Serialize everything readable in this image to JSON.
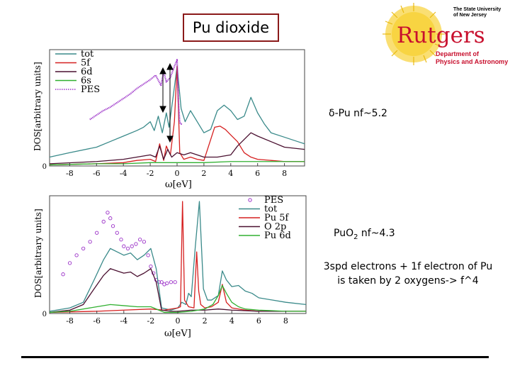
{
  "slide": {
    "title": "Pu dioxide",
    "note_delta": "δ-Pu nf~5.2",
    "note_puo2_prefix": "PuO",
    "note_puo2_sub": "2",
    "note_puo2_suffix": " nf~4.3",
    "note_electrons_line1": "3spd electrons + 1f electron of Pu",
    "note_electrons_line2": "is taken by 2 oxygens-> f^4"
  },
  "logo": {
    "university_line1": "The State University",
    "university_line2": "of New Jersey",
    "name": "Rutgers",
    "department_line1": "Department of",
    "department_line2": "Physics and Astronomy",
    "colors": {
      "red": "#c8102e",
      "sun": "#f5c400"
    }
  },
  "chart_data": [
    {
      "type": "line",
      "xlabel": "ω[eV]",
      "ylabel": "DOS[arbitrary units]",
      "xlim": [
        -9.5,
        9.5
      ],
      "ylim": [
        0,
        1.0
      ],
      "xticks": [
        -8,
        -6,
        -4,
        -2,
        0,
        2,
        4,
        6,
        8
      ],
      "yticks": [
        0
      ],
      "legend_position": "top-left",
      "series": [
        {
          "name": "tot",
          "color": "#3a8a8a",
          "marker": "none",
          "x": [
            -9.5,
            -8,
            -6,
            -5,
            -4,
            -3,
            -2.5,
            -2,
            -1.7,
            -1.4,
            -1.1,
            -0.8,
            -0.6,
            -0.3,
            0,
            0.3,
            0.6,
            1.0,
            1.5,
            2.0,
            2.5,
            3.0,
            3.5,
            4.0,
            4.5,
            5.0,
            5.5,
            6.0,
            6.5,
            7.0,
            8.0,
            9.0,
            9.5
          ],
          "y": [
            0.08,
            0.12,
            0.17,
            0.22,
            0.27,
            0.32,
            0.35,
            0.4,
            0.32,
            0.45,
            0.3,
            0.48,
            0.35,
            0.62,
            0.9,
            0.52,
            0.4,
            0.5,
            0.4,
            0.3,
            0.33,
            0.5,
            0.55,
            0.5,
            0.42,
            0.45,
            0.62,
            0.48,
            0.38,
            0.3,
            0.26,
            0.22,
            0.2
          ]
        },
        {
          "name": "5f",
          "color": "#d62020",
          "marker": "none",
          "x": [
            -9.5,
            -6,
            -4,
            -3,
            -2,
            -1.6,
            -1.3,
            -1.0,
            -0.8,
            -0.5,
            -0.2,
            0,
            0.2,
            0.5,
            1.0,
            1.5,
            2.0,
            2.4,
            2.8,
            3.2,
            3.6,
            4.0,
            4.5,
            5.0,
            5.5,
            6.0,
            7.0,
            8.0,
            9.5
          ],
          "y": [
            0.01,
            0.02,
            0.03,
            0.05,
            0.06,
            0.04,
            0.2,
            0.05,
            0.18,
            0.1,
            0.4,
            0.9,
            0.12,
            0.06,
            0.08,
            0.06,
            0.05,
            0.2,
            0.35,
            0.36,
            0.33,
            0.28,
            0.22,
            0.12,
            0.08,
            0.06,
            0.05,
            0.04,
            0.04
          ]
        },
        {
          "name": "6d",
          "color": "#4a1030",
          "marker": "none",
          "x": [
            -9.5,
            -6,
            -4,
            -3,
            -2,
            -1.6,
            -1.3,
            -1.0,
            -0.7,
            -0.4,
            0,
            0.5,
            1.0,
            1.5,
            2.0,
            3.0,
            4.0,
            4.5,
            5.0,
            5.5,
            6.0,
            7.0,
            8.0,
            9.5
          ],
          "y": [
            0.02,
            0.04,
            0.06,
            0.08,
            0.1,
            0.08,
            0.18,
            0.06,
            0.15,
            0.08,
            0.12,
            0.1,
            0.12,
            0.1,
            0.08,
            0.08,
            0.1,
            0.18,
            0.24,
            0.3,
            0.27,
            0.22,
            0.17,
            0.15
          ]
        },
        {
          "name": "6s",
          "color": "#30b030",
          "marker": "none",
          "x": [
            -9.5,
            -6,
            -4,
            -2,
            0,
            2,
            4,
            6,
            8,
            9.5
          ],
          "y": [
            0.01,
            0.02,
            0.02,
            0.03,
            0.03,
            0.03,
            0.04,
            0.04,
            0.04,
            0.04
          ]
        },
        {
          "name": "PES",
          "color": "#9b30c8",
          "marker": "dotted",
          "x": [
            -6.5,
            -6,
            -5.5,
            -5,
            -4.5,
            -4,
            -3.5,
            -3,
            -2.5,
            -2,
            -1.6,
            -1.2,
            -1.0,
            -0.8,
            -0.5,
            -0.2,
            0,
            0.1,
            0.2,
            0.3,
            0.4
          ],
          "y": [
            0.42,
            0.46,
            0.5,
            0.53,
            0.57,
            0.61,
            0.65,
            0.7,
            0.74,
            0.78,
            0.82,
            0.73,
            0.85,
            0.76,
            0.8,
            0.9,
            0.96,
            0.58,
            0.39,
            0.38,
            0.38
          ]
        }
      ]
    },
    {
      "type": "line",
      "xlabel": "ω[eV]",
      "ylabel": "DOS[arbitrary units]",
      "xlim": [
        -9.5,
        9.5
      ],
      "ylim": [
        0,
        1.0
      ],
      "xticks": [
        -8,
        -6,
        -4,
        -2,
        0,
        2,
        4,
        6,
        8
      ],
      "yticks": [
        0
      ],
      "legend_position": "top-right",
      "series": [
        {
          "name": "PES",
          "color": "#9b30c8",
          "marker": "circle",
          "x": [
            -8.5,
            -8,
            -7.5,
            -7,
            -6.5,
            -6,
            -5.5,
            -5.2,
            -5,
            -4.8,
            -4.5,
            -4.2,
            -4,
            -3.7,
            -3.4,
            -3.1,
            -2.8,
            -2.5,
            -2.2,
            -2,
            -1.8,
            -1.6,
            -1.4,
            -1.2,
            -1,
            -0.8,
            -0.5,
            -0.2
          ],
          "y": [
            0.35,
            0.45,
            0.52,
            0.58,
            0.64,
            0.72,
            0.82,
            0.9,
            0.85,
            0.78,
            0.72,
            0.66,
            0.6,
            0.58,
            0.6,
            0.62,
            0.66,
            0.64,
            0.52,
            0.42,
            0.36,
            0.3,
            0.28,
            0.28,
            0.26,
            0.27,
            0.28,
            0.28
          ]
        },
        {
          "name": "tot",
          "color": "#3a8a8a",
          "marker": "none",
          "x": [
            -9.5,
            -8,
            -7,
            -6.2,
            -5.5,
            -5,
            -4.5,
            -4,
            -3.5,
            -3,
            -2.5,
            -2.0,
            -1.6,
            -1.2,
            -0.5,
            0,
            0.3,
            0.6,
            0.8,
            1.0,
            1.3,
            1.6,
            1.9,
            2.2,
            2.5,
            3.0,
            3.3,
            3.6,
            4.0,
            4.5,
            5.0,
            5.5,
            6.0,
            7.0,
            8.0,
            9.5
          ],
          "y": [
            0.02,
            0.05,
            0.1,
            0.3,
            0.48,
            0.58,
            0.55,
            0.52,
            0.54,
            0.48,
            0.52,
            0.58,
            0.4,
            0.05,
            0.03,
            0.05,
            0.1,
            0.08,
            0.18,
            0.15,
            0.6,
            1.0,
            0.22,
            0.12,
            0.12,
            0.16,
            0.38,
            0.3,
            0.24,
            0.25,
            0.2,
            0.18,
            0.14,
            0.12,
            0.1,
            0.08
          ]
        },
        {
          "name": "Pu 5f",
          "color": "#d62020",
          "marker": "none",
          "x": [
            -9.5,
            -6,
            -4,
            -2,
            -1.0,
            0,
            0.2,
            0.35,
            0.5,
            0.8,
            1.2,
            1.4,
            1.55,
            1.7,
            2.0,
            2.5,
            3.0,
            3.3,
            3.6,
            4.0,
            5.0,
            6.0,
            9.5
          ],
          "y": [
            0.01,
            0.02,
            0.03,
            0.04,
            0.03,
            0.05,
            0.06,
            1.0,
            0.12,
            0.06,
            0.05,
            0.55,
            0.2,
            0.08,
            0.05,
            0.06,
            0.1,
            0.26,
            0.1,
            0.05,
            0.03,
            0.02,
            0.02
          ]
        },
        {
          "name": "O 2p",
          "color": "#4a1030",
          "marker": "none",
          "x": [
            -9.5,
            -8,
            -7,
            -6.2,
            -5.5,
            -5,
            -4.5,
            -4,
            -3.5,
            -3,
            -2.5,
            -2.0,
            -1.6,
            -1.2,
            -0.5,
            0,
            1.0,
            2.0,
            3.0,
            4.0,
            6.0,
            9.5
          ],
          "y": [
            0.01,
            0.03,
            0.08,
            0.22,
            0.34,
            0.4,
            0.38,
            0.36,
            0.37,
            0.33,
            0.36,
            0.4,
            0.28,
            0.03,
            0.02,
            0.02,
            0.03,
            0.03,
            0.04,
            0.03,
            0.02,
            0.02
          ]
        },
        {
          "name": "Pu 6d",
          "color": "#30b030",
          "marker": "none",
          "x": [
            -9.5,
            -8,
            -6,
            -5,
            -4,
            -3,
            -2,
            -1.4,
            -1.0,
            0,
            1.0,
            2.0,
            2.6,
            3.0,
            3.3,
            3.6,
            4.0,
            4.5,
            5.0,
            6.0,
            8.0,
            9.5
          ],
          "y": [
            0.01,
            0.02,
            0.06,
            0.08,
            0.07,
            0.06,
            0.06,
            0.03,
            0.01,
            0.01,
            0.02,
            0.04,
            0.08,
            0.16,
            0.25,
            0.18,
            0.1,
            0.06,
            0.04,
            0.03,
            0.02,
            0.02
          ]
        }
      ]
    }
  ]
}
